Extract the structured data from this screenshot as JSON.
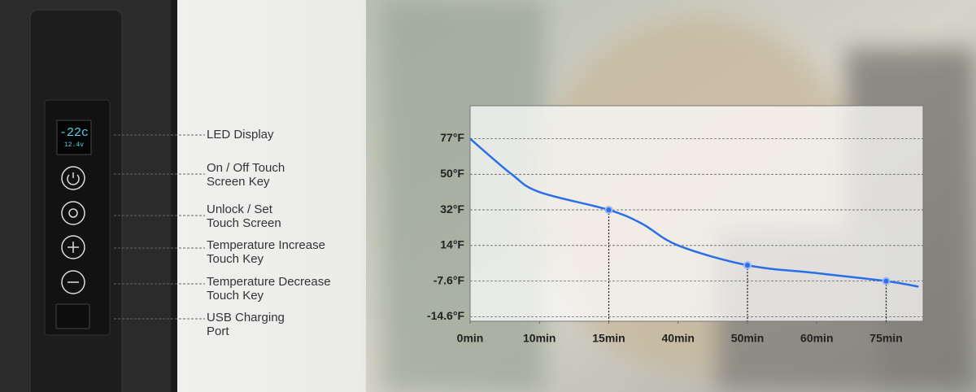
{
  "panel": {
    "labels": [
      {
        "lines": [
          "LED Display"
        ]
      },
      {
        "lines": [
          "On / Off Touch",
          "Screen Key"
        ]
      },
      {
        "lines": [
          "Unlock / Set",
          "Touch Screen"
        ]
      },
      {
        "lines": [
          "Temperature Increase",
          "Touch Key"
        ]
      },
      {
        "lines": [
          "Temperature Decrease",
          "Touch Key"
        ]
      },
      {
        "lines": [
          "USB Charging",
          "Port"
        ]
      }
    ]
  },
  "chart_data": {
    "type": "line",
    "x": [
      0,
      6,
      10,
      15,
      27,
      40,
      50,
      60,
      75,
      82
    ],
    "series": [
      {
        "color": "#2a6fe8",
        "values": [
          77,
          50,
          41,
          32,
          25,
          14,
          2,
          -2.8,
          -7.6,
          -8.7
        ]
      }
    ],
    "marker_x": [
      15,
      50,
      75
    ],
    "xlim": [
      0,
      83
    ],
    "xticks": [
      {
        "value": 0,
        "label": "0min"
      },
      {
        "value": 10,
        "label": "10min"
      },
      {
        "value": 15,
        "label": "15min"
      },
      {
        "value": 40,
        "label": "40min"
      },
      {
        "value": 50,
        "label": "50min"
      },
      {
        "value": 60,
        "label": "60min"
      },
      {
        "value": 75,
        "label": "75min"
      }
    ],
    "ylim": [
      -15.5,
      102
    ],
    "yticks": [
      {
        "value": -14.6,
        "label": "-14.6°F"
      },
      {
        "value": -7.6,
        "label": "-7.6°F"
      },
      {
        "value": 14,
        "label": "14°F"
      },
      {
        "value": 32,
        "label": "32°F"
      },
      {
        "value": 50,
        "label": "50°F"
      },
      {
        "value": 77,
        "label": "77°F"
      }
    ],
    "grid": true
  }
}
